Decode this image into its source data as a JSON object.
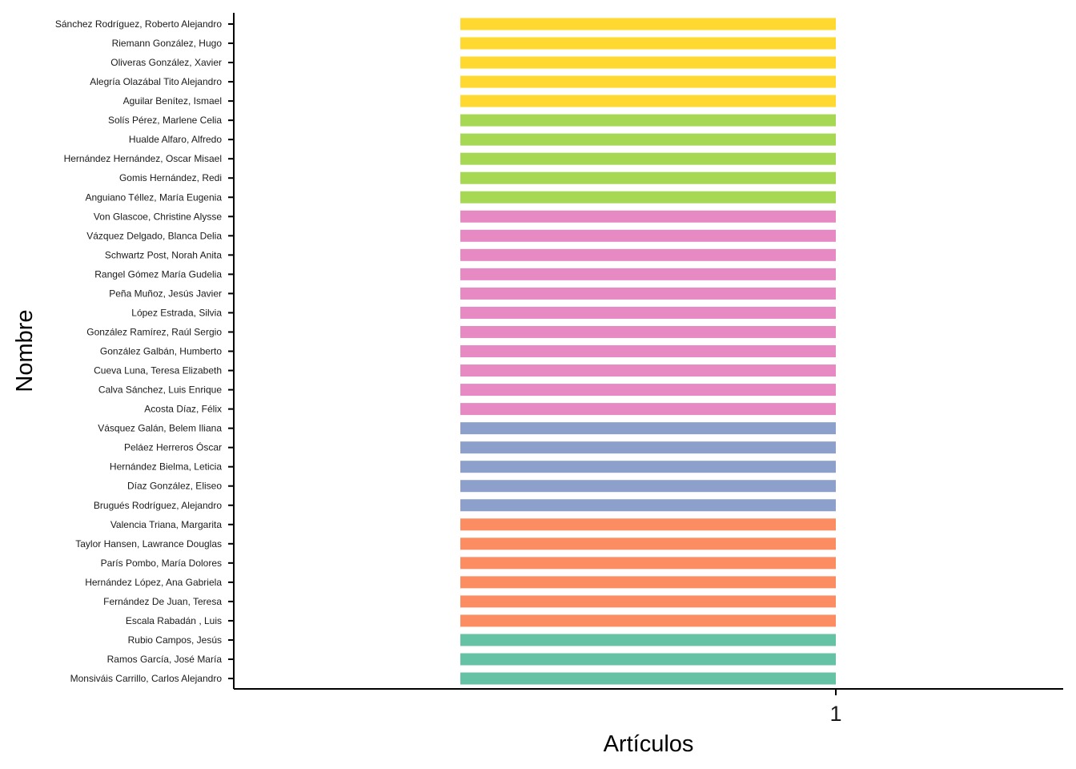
{
  "chart_data": {
    "type": "bar",
    "orientation": "horizontal",
    "xlabel": "Artículos",
    "ylabel": "Nombre",
    "x_ticks": [
      "1"
    ],
    "grid": false,
    "legend": "none",
    "categories": [
      "Sánchez Rodríguez, Roberto Alejandro",
      "Riemann González, Hugo",
      "Oliveras González, Xavier",
      "Alegría Olazábal Tito Alejandro",
      "Aguilar Benítez, Ismael",
      "Solís Pérez, Marlene Celia",
      "Hualde Alfaro, Alfredo",
      "Hernández Hernández, Oscar Misael",
      "Gomis Hernández, Redi",
      "Anguiano Téllez, María Eugenia",
      "Von Glascoe, Christine Alysse",
      "Vázquez Delgado, Blanca Delia",
      "Schwartz Post, Norah Anita",
      "Rangel Gómez María Gudelia",
      "Peña Muñoz, Jesús Javier",
      "López Estrada, Silvia",
      "González Ramírez, Raúl Sergio",
      "González Galbán, Humberto",
      "Cueva Luna, Teresa Elizabeth",
      "Calva Sánchez, Luis Enrique",
      "Acosta Díaz, Félix",
      "Vásquez Galán, Belem Iliana",
      "Peláez Herreros Óscar",
      "Hernández Bielma, Leticia",
      "Díaz González, Eliseo",
      "Brugués Rodríguez, Alejandro",
      "Valencia Triana, Margarita",
      "Taylor Hansen, Lawrance Douglas",
      "París Pombo, María Dolores",
      "Hernández López, Ana Gabriela",
      "Fernández De Juan, Teresa",
      "Escala Rabadán , Luis",
      "Rubio Campos, Jesús",
      "Ramos García, José María",
      "Monsiváis Carrillo, Carlos Alejandro"
    ],
    "values": [
      1,
      1,
      1,
      1,
      1,
      1,
      1,
      1,
      1,
      1,
      1,
      1,
      1,
      1,
      1,
      1,
      1,
      1,
      1,
      1,
      1,
      1,
      1,
      1,
      1,
      1,
      1,
      1,
      1,
      1,
      1,
      1,
      1,
      1,
      1
    ],
    "colors": [
      "#FFD92F",
      "#FFD92F",
      "#FFD92F",
      "#FFD92F",
      "#FFD92F",
      "#A6D854",
      "#A6D854",
      "#A6D854",
      "#A6D854",
      "#A6D854",
      "#E78AC3",
      "#E78AC3",
      "#E78AC3",
      "#E78AC3",
      "#E78AC3",
      "#E78AC3",
      "#E78AC3",
      "#E78AC3",
      "#E78AC3",
      "#E78AC3",
      "#E78AC3",
      "#8DA0CB",
      "#8DA0CB",
      "#8DA0CB",
      "#8DA0CB",
      "#8DA0CB",
      "#FC8D62",
      "#FC8D62",
      "#FC8D62",
      "#FC8D62",
      "#FC8D62",
      "#FC8D62",
      "#66C2A5",
      "#66C2A5",
      "#66C2A5"
    ]
  }
}
